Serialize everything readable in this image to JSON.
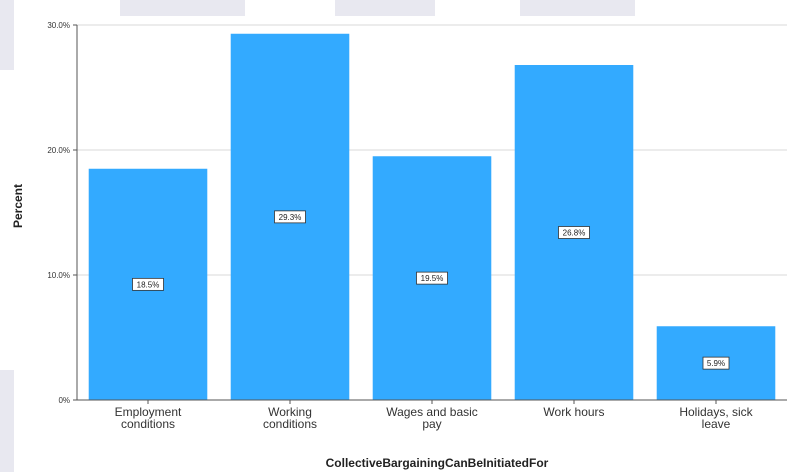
{
  "chart_data": {
    "type": "bar",
    "title": "",
    "xlabel": "CollectiveBargainingCanBeInitiatedFor",
    "ylabel": "Percent",
    "ylim": [
      0,
      30
    ],
    "yticks": [
      {
        "value": 0,
        "label": "0%"
      },
      {
        "value": 10,
        "label": "10.0%"
      },
      {
        "value": 20,
        "label": "20.0%"
      },
      {
        "value": 30,
        "label": "30.0%"
      }
    ],
    "grid": true,
    "categories": [
      [
        "Employment",
        "conditions"
      ],
      [
        "Working",
        "conditions"
      ],
      [
        "Wages and basic",
        "pay"
      ],
      [
        "Work hours"
      ],
      [
        "Holidays, sick",
        "leave"
      ]
    ],
    "values": [
      18.5,
      29.3,
      19.5,
      26.8,
      5.9
    ],
    "data_labels": [
      "18.5%",
      "29.3%",
      "19.5%",
      "26.8%",
      "5.9%"
    ],
    "colors": {
      "bar": "#33aaff",
      "grid": "#d9d9d9",
      "axis": "#555555"
    }
  }
}
